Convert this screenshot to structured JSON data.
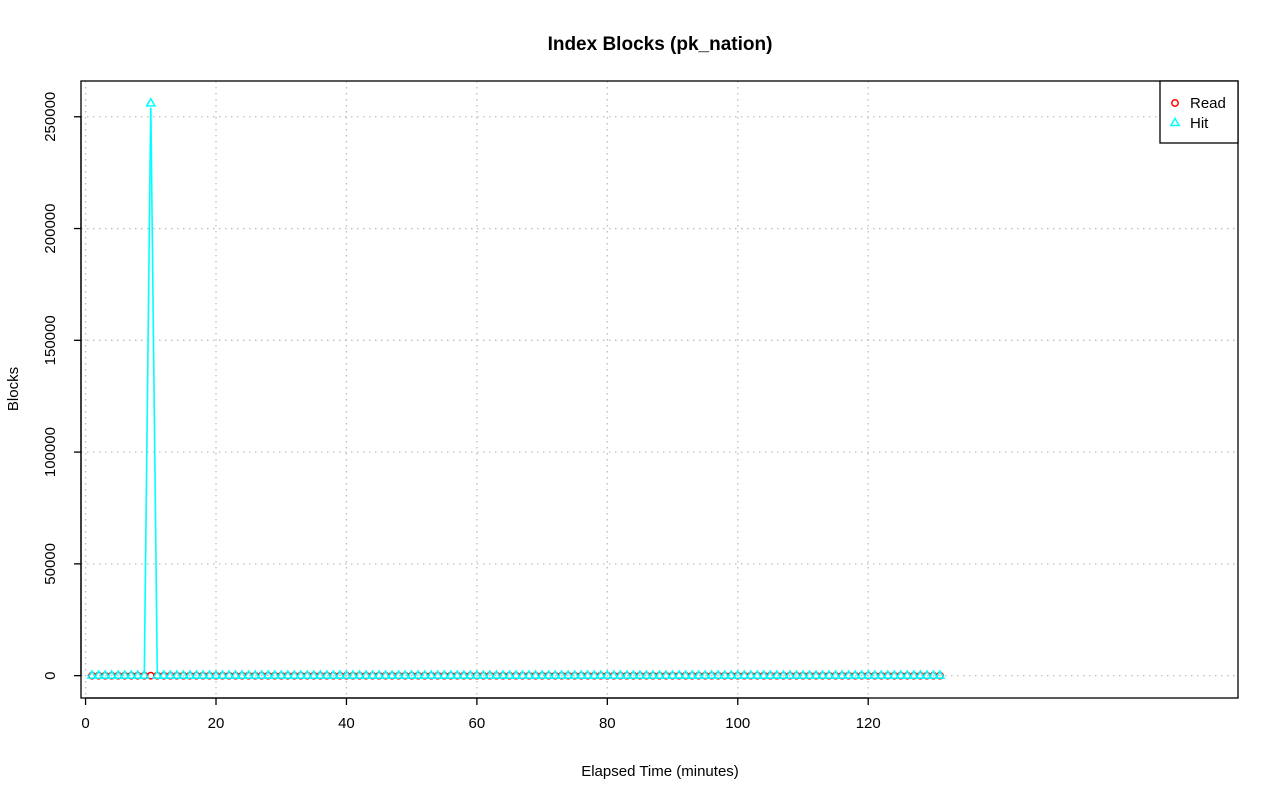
{
  "chart_data": {
    "type": "line",
    "title": "Index Blocks (pk_nation)",
    "xlabel": "Elapsed Time (minutes)",
    "ylabel": "Blocks",
    "xlim": [
      -0.7,
      176.7
    ],
    "ylim": [
      -10000,
      266000
    ],
    "xticks": [
      0,
      20,
      40,
      60,
      80,
      100,
      120
    ],
    "yticks": [
      0,
      50000,
      100000,
      150000,
      200000,
      250000
    ],
    "grid": true,
    "legend_position": "top-right",
    "x_start": 1,
    "x_end": 131,
    "series": [
      {
        "name": "Read",
        "color": "#ff0000",
        "marker": "circle",
        "baseline": 0,
        "spikes": []
      },
      {
        "name": "Hit",
        "color": "#00ffff",
        "marker": "triangle",
        "baseline": 0,
        "spikes": [
          {
            "x": 10,
            "y": 256000
          }
        ]
      }
    ]
  }
}
